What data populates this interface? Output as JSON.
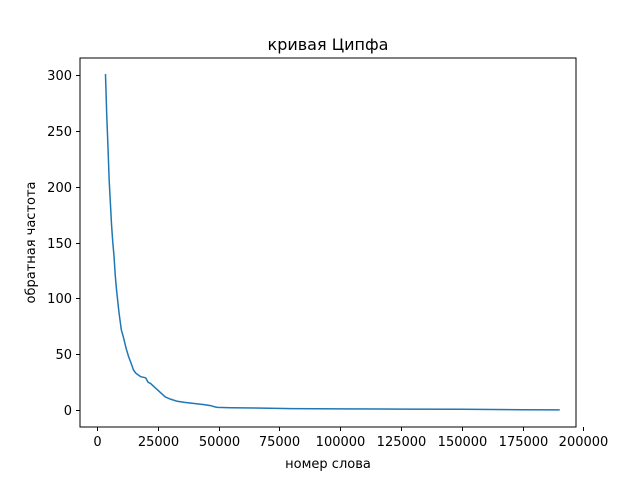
{
  "chart_data": {
    "type": "line",
    "title": "кривая Ципфа",
    "xlabel": "номер слова",
    "ylabel": "обратная частота",
    "xlim": [
      -7000,
      197000
    ],
    "ylim": [
      -15,
      315
    ],
    "xticks": [
      {
        "value": 0,
        "label": "0"
      },
      {
        "value": 25000,
        "label": "25000"
      },
      {
        "value": 50000,
        "label": "50000"
      },
      {
        "value": 75000,
        "label": "75000"
      },
      {
        "value": 100000,
        "label": "100000"
      },
      {
        "value": 125000,
        "label": "125000"
      },
      {
        "value": 150000,
        "label": "150000"
      },
      {
        "value": 175000,
        "label": "175000"
      },
      {
        "value": 200000,
        "label": "200000"
      }
    ],
    "yticks": [
      {
        "value": 0,
        "label": "0"
      },
      {
        "value": 50,
        "label": "50"
      },
      {
        "value": 100,
        "label": "100"
      },
      {
        "value": 150,
        "label": "150"
      },
      {
        "value": 200,
        "label": "200"
      },
      {
        "value": 250,
        "label": "250"
      },
      {
        "value": 300,
        "label": "300"
      }
    ],
    "grid": false,
    "color": "#1f77b4",
    "series": [
      {
        "x": [
          3500,
          4000,
          4500,
          5000,
          5500,
          6000,
          6500,
          7000,
          7500,
          8000,
          8500,
          9000,
          9500,
          10000,
          11000,
          12000,
          13000,
          14000,
          15000,
          16000,
          18000,
          20000,
          21000,
          22000,
          24000,
          26000,
          28000,
          30000,
          33000,
          36000,
          40000,
          44000,
          47000,
          48500,
          49500,
          55000,
          65000,
          80000,
          100000,
          125000,
          150000,
          175000,
          190000
        ],
        "y": [
          300,
          265,
          235,
          205,
          185,
          165,
          150,
          138,
          120,
          108,
          98,
          88,
          80,
          72,
          64,
          55,
          48,
          42,
          36,
          33,
          30,
          29,
          25,
          24,
          20,
          16,
          12,
          10,
          8,
          7,
          6,
          5,
          4,
          3,
          2.5,
          2.3,
          2,
          1.5,
          1.2,
          1,
          0.8,
          0.5,
          0.3
        ]
      }
    ]
  }
}
